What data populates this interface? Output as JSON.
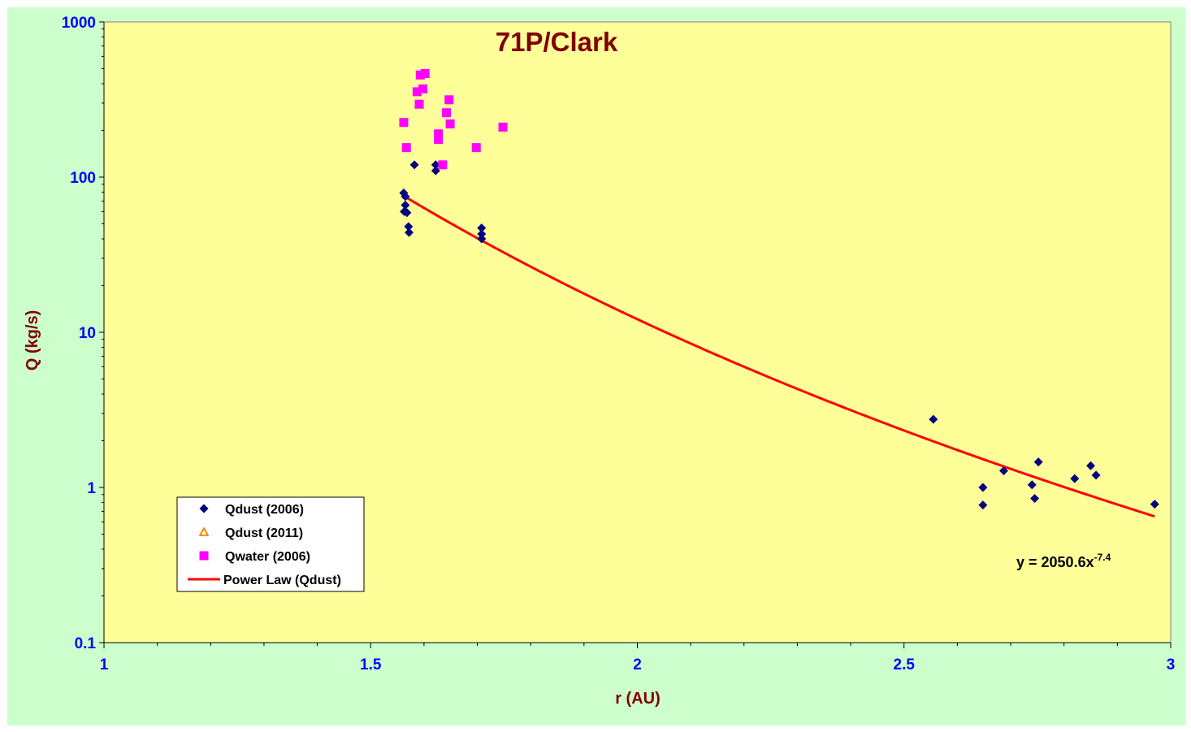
{
  "chart_data": {
    "type": "scatter",
    "title": "71P/Clark",
    "xlabel": "r (AU)",
    "ylabel": "Q (kg/s)",
    "xlim": [
      1,
      3
    ],
    "ylim": [
      0.1,
      1000
    ],
    "yscale": "log",
    "x_ticks": [
      "1",
      "1.5",
      "2",
      "2.5",
      "3"
    ],
    "y_ticks": [
      "0.1",
      "1",
      "10",
      "100",
      "1000"
    ],
    "grid": false,
    "legend_position": "bottom-left",
    "background_color": "#ffff99",
    "outer_color": "#ccffcc",
    "series": [
      {
        "name": "Qdust (2006)",
        "marker": "diamond",
        "color": "#000080",
        "points": [
          [
            1.562,
            79
          ],
          [
            1.565,
            75
          ],
          [
            1.565,
            66
          ],
          [
            1.563,
            60
          ],
          [
            1.568,
            59
          ],
          [
            1.571,
            48
          ],
          [
            1.572,
            44
          ],
          [
            1.582,
            120
          ],
          [
            1.622,
            120
          ],
          [
            1.622,
            110
          ],
          [
            1.708,
            47
          ],
          [
            1.708,
            43
          ],
          [
            1.708,
            40
          ],
          [
            2.555,
            2.75
          ],
          [
            2.648,
            1.0
          ],
          [
            2.648,
            0.77
          ],
          [
            2.687,
            1.28
          ],
          [
            2.74,
            1.04
          ],
          [
            2.745,
            0.85
          ],
          [
            2.752,
            1.46
          ],
          [
            2.82,
            1.14
          ],
          [
            2.85,
            1.38
          ],
          [
            2.86,
            1.2
          ],
          [
            2.97,
            0.78
          ]
        ]
      },
      {
        "name": "Qdust (2011)",
        "marker": "triangle",
        "color": "#ff6600",
        "points": []
      },
      {
        "name": "Qwater (2006)",
        "marker": "square",
        "color": "#ff00ff",
        "points": [
          [
            1.562,
            225
          ],
          [
            1.567,
            155
          ],
          [
            1.587,
            355
          ],
          [
            1.591,
            295
          ],
          [
            1.593,
            455
          ],
          [
            1.598,
            370
          ],
          [
            1.602,
            465
          ],
          [
            1.627,
            190
          ],
          [
            1.627,
            175
          ],
          [
            1.635,
            120
          ],
          [
            1.642,
            260
          ],
          [
            1.647,
            315
          ],
          [
            1.649,
            220
          ],
          [
            1.698,
            155
          ],
          [
            1.748,
            210
          ]
        ]
      }
    ],
    "fit": {
      "name": "Power Law (Qdust)",
      "color": "#ff0000",
      "coefficient": 2050.6,
      "exponent": -7.4,
      "x_range": [
        1.56,
        2.97
      ],
      "equation_base": "y = 2050.6x",
      "equation_exponent": "-7.4"
    }
  }
}
